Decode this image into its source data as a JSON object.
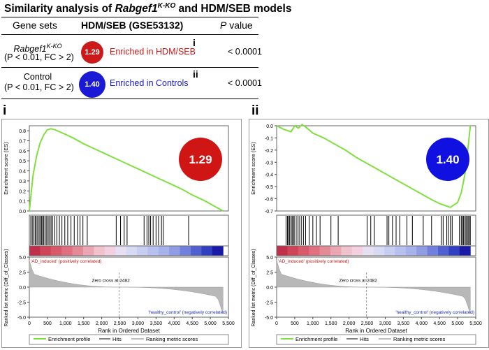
{
  "title": {
    "prefix": "Similarity analysis of ",
    "gene": "Rabgef1",
    "gene_sup": "K-KO",
    "suffix": " and HDM/SEB models"
  },
  "table": {
    "headers": {
      "gene_sets": "Gene sets",
      "dataset": "HDM/SEB (GSE53132)",
      "p_italic": "P",
      "p_rest": " value"
    },
    "rows": [
      {
        "name": "Rabgef1",
        "name_sup": "K-KO",
        "criteria": "(P < 0.01, FC > 2)",
        "nes": "1.29",
        "nes_color": "#cc1a1a",
        "enrichment": "Enriched in HDM/SEB",
        "text_color": "#cc1a1a",
        "ref": "i",
        "p": "< 0.0001"
      },
      {
        "name": "Control",
        "name_sup": "",
        "criteria": "(P < 0.01, FC > 2)",
        "nes": "1.40",
        "nes_color": "#1a1ad6",
        "enrichment": "Enriched in Controls",
        "text_color": "#1a1ad6",
        "ref": "ii",
        "p": "< 0.0001"
      }
    ]
  },
  "chart_data": [
    {
      "type": "line",
      "panel": "i",
      "nes_badge": "1.29",
      "badge_color": "#d01515",
      "curve_color": "#80e040",
      "es_ylabel": "Enrichment score (ES)",
      "es_ylim": [
        0,
        0.85
      ],
      "es_yticks": [
        "0.8",
        "0.7",
        "0.6",
        "0.5",
        "0.4",
        "0.3",
        "0.2",
        "0.1",
        "0.0"
      ],
      "es_curve": {
        "x": [
          0,
          100,
          200,
          300,
          400,
          500,
          600,
          700,
          900,
          1200,
          1500,
          1800,
          2100,
          2400,
          2700,
          3000,
          3300,
          3600,
          3900,
          4200,
          4500,
          4800,
          5100,
          5350
        ],
        "y": [
          0.0,
          0.35,
          0.55,
          0.68,
          0.76,
          0.81,
          0.82,
          0.81,
          0.78,
          0.73,
          0.67,
          0.62,
          0.57,
          0.52,
          0.47,
          0.42,
          0.37,
          0.32,
          0.27,
          0.22,
          0.16,
          0.11,
          0.05,
          0.0
        ]
      },
      "hits": [
        40,
        80,
        120,
        160,
        190,
        230,
        270,
        300,
        340,
        370,
        400,
        440,
        480,
        520,
        560,
        600,
        640,
        700,
        760,
        830,
        900,
        980,
        1060,
        1150,
        1240,
        1330,
        1400,
        1480,
        1600,
        2400,
        2520,
        2620,
        2700,
        3170,
        3250,
        3300,
        3350,
        3420,
        3500,
        3570,
        3650,
        3700,
        4400
      ],
      "pos_label": "'AD_induced' (positively correlated)",
      "neg_label": "'healthy_control' (negatively correlated)",
      "zero_cross": "Zero cross at 2482",
      "rank_ylabel": "Ranked list metric (Diff_of_Classes)",
      "rank_ylim": [
        -5,
        5
      ],
      "rank_yticks": [
        "5.0",
        "2.5",
        "0.0",
        "-2.5",
        "-5.0"
      ],
      "xlabel": "Rank in Ordered Dataset",
      "xlim": [
        0,
        5500
      ],
      "xticks": [
        "0",
        "500",
        "1,000",
        "1,500",
        "2,000",
        "2,500",
        "3,000",
        "3,500",
        "4,000",
        "4,500",
        "5,000",
        "5,500"
      ],
      "legend": [
        "Enrichment profile",
        "Hits",
        "Ranking metric scores"
      ]
    },
    {
      "type": "line",
      "panel": "ii",
      "nes_badge": "1.40",
      "badge_color": "#1010e0",
      "curve_color": "#80e040",
      "es_ylabel": "Enrichment score (ES)",
      "es_ylim": [
        -0.7,
        0.0
      ],
      "es_yticks": [
        "0.0",
        "-0.1",
        "-0.2",
        "-0.3",
        "-0.4",
        "-0.5",
        "-0.6",
        "-0.7"
      ],
      "es_curve": {
        "x": [
          0,
          200,
          400,
          500,
          600,
          700,
          800,
          1000,
          1300,
          1600,
          1900,
          2200,
          2500,
          2800,
          3100,
          3400,
          3700,
          4000,
          4300,
          4500,
          4700,
          4800,
          4900,
          5000,
          5100,
          5200,
          5300,
          5350
        ],
        "y": [
          0.0,
          -0.03,
          -0.05,
          0.0,
          -0.02,
          0.01,
          -0.01,
          -0.06,
          -0.1,
          -0.15,
          -0.2,
          -0.26,
          -0.31,
          -0.36,
          -0.41,
          -0.46,
          -0.51,
          -0.56,
          -0.61,
          -0.64,
          -0.66,
          -0.67,
          -0.65,
          -0.63,
          -0.55,
          -0.4,
          -0.15,
          0.0
        ]
      },
      "hits": [
        260,
        300,
        330,
        360,
        400,
        430,
        470,
        500,
        560,
        620,
        680,
        740,
        800,
        900,
        1000,
        1100,
        1200,
        1500,
        1700,
        2500,
        2600,
        2700,
        3050,
        3100,
        3200,
        3300,
        3400,
        3600,
        3750,
        4050,
        4280,
        4550,
        4600,
        4700,
        4750,
        4800,
        4850,
        5050,
        5100,
        5130,
        5160,
        5200,
        5230,
        5260,
        5290,
        5320,
        5350
      ],
      "pos_label": "'AD_induced' (positively correlated)",
      "neg_label": "'healthy_control' (negatively correlated)",
      "zero_cross": "Zero cross at 2482",
      "rank_ylabel": "Ranked list metric (Diff_of_Classes)",
      "rank_ylim": [
        -5,
        5
      ],
      "rank_yticks": [
        "5.0",
        "2.5",
        "0.0",
        "-2.5",
        "-5.0"
      ],
      "xlabel": "Rank in Ordered Dataset",
      "xlim": [
        0,
        5500
      ],
      "xticks": [
        "0",
        "500",
        "1,000",
        "1,500",
        "2,000",
        "2,500",
        "3,000",
        "3,500",
        "4,000",
        "4,500",
        "5,000",
        "5,500"
      ],
      "legend": [
        "Enrichment profile",
        "Hits",
        "Ranking metric scores"
      ]
    }
  ]
}
